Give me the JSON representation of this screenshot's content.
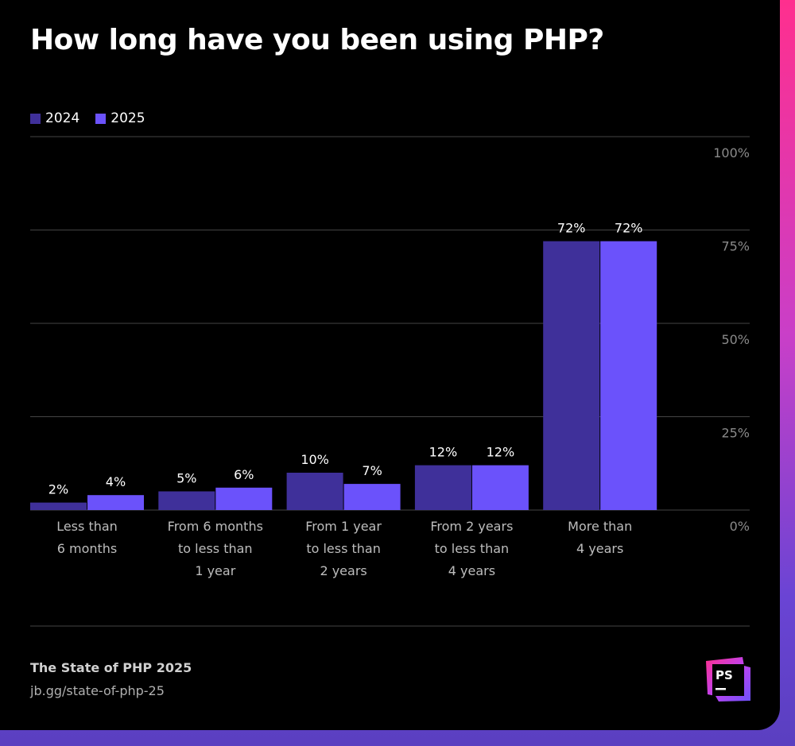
{
  "title": "How long have you been using PHP?",
  "colors": {
    "2024": "#3f309a",
    "2025": "#6b52fb",
    "grid": "#444444",
    "tick": "#8a8a8a"
  },
  "chart_data": {
    "type": "bar",
    "title": "How long have you been using PHP?",
    "categories": [
      [
        "Less than",
        "6 months"
      ],
      [
        "From 6 months",
        "to less than",
        "1 year"
      ],
      [
        "From 1 year",
        "to less than",
        "2 years"
      ],
      [
        "From 2 years",
        "to less than",
        "4 years"
      ],
      [
        "More than",
        "4 years"
      ]
    ],
    "series": [
      {
        "name": "2024",
        "values": [
          2,
          5,
          10,
          12,
          72
        ]
      },
      {
        "name": "2025",
        "values": [
          4,
          6,
          7,
          12,
          72
        ]
      }
    ],
    "ylim": [
      0,
      100
    ],
    "yticks": [
      0,
      25,
      50,
      75,
      100
    ],
    "ytick_labels": [
      "0%",
      "25%",
      "50%",
      "75%",
      "100%"
    ],
    "value_suffix": "%",
    "grid": true,
    "legend": "top-left",
    "axis_side": "right"
  },
  "footer": {
    "source": "The State of PHP 2025",
    "url": "jb.gg/state-of-php-25"
  },
  "logo": {
    "text": "PS"
  }
}
